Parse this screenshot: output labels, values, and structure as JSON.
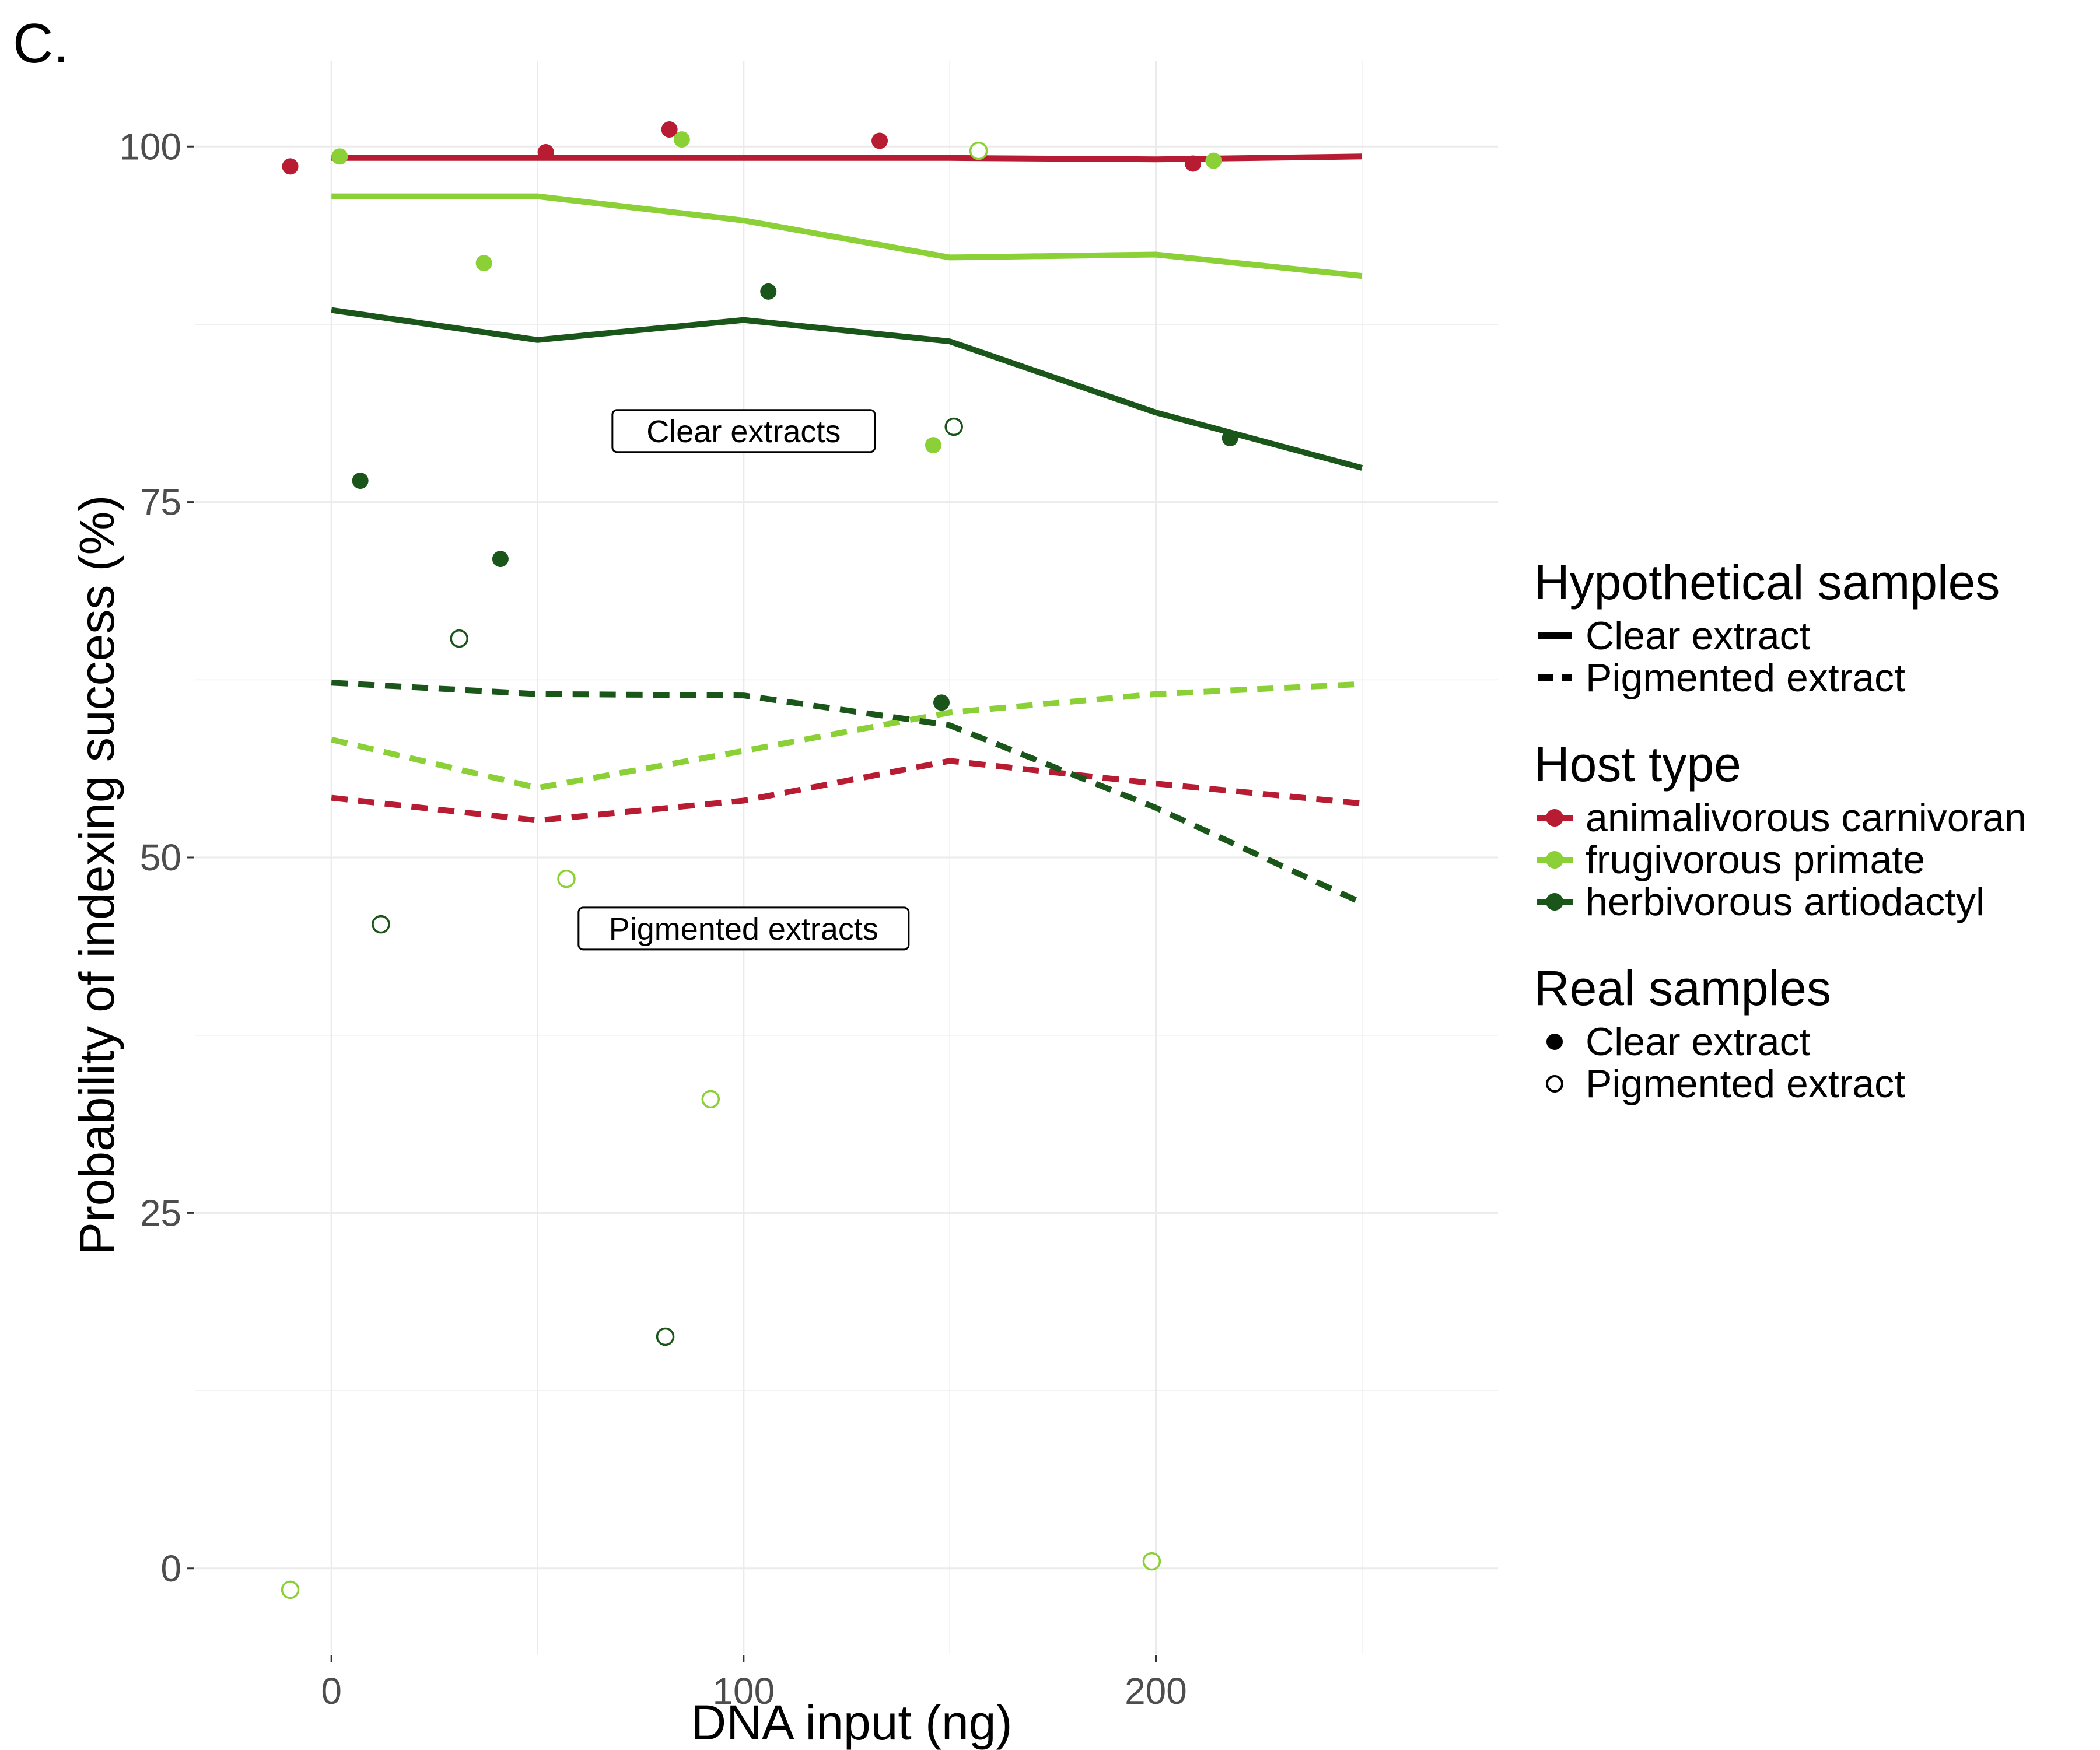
{
  "panel_label": "C.",
  "colors": {
    "animalivorous carnivoran": "#b81c32",
    "frugivorous primate": "#8cd037",
    "herbivorous artiodactyl": "#1a5519"
  },
  "legend": {
    "hypothetical": {
      "title": "Hypothetical samples",
      "items": [
        {
          "label": "Clear extract",
          "linetype": "solid"
        },
        {
          "label": "Pigmented extract",
          "linetype": "dashed"
        }
      ]
    },
    "host": {
      "title": "Host type",
      "items": [
        {
          "label": "animalivorous carnivoran",
          "color": "#b81c32"
        },
        {
          "label": "frugivorous primate",
          "color": "#8cd037"
        },
        {
          "label": "herbivorous artiodactyl",
          "color": "#1a5519"
        }
      ]
    },
    "real": {
      "title": "Real samples",
      "items": [
        {
          "label": "Clear extract",
          "marker": "filled"
        },
        {
          "label": "Pigmented extract",
          "marker": "open"
        }
      ]
    }
  },
  "chart_data": {
    "type": "line",
    "xlabel": "DNA input (ng)",
    "ylabel": "Probability of indexing success (%)",
    "xlim": [
      -33,
      283
    ],
    "ylim": [
      -6,
      106
    ],
    "xticks": [
      0,
      100,
      200
    ],
    "yticks": [
      0,
      25,
      50,
      75,
      100
    ],
    "grid": true,
    "legend_position": "right",
    "x": [
      0,
      50,
      100,
      150,
      200,
      250
    ],
    "series": [
      {
        "host": "animalivorous carnivoran",
        "extract": "Clear extract",
        "linetype": "solid",
        "values": [
          99.2,
          99.2,
          99.2,
          99.2,
          99.1,
          99.3
        ]
      },
      {
        "host": "frugivorous primate",
        "extract": "Clear extract",
        "linetype": "solid",
        "values": [
          96.5,
          96.5,
          94.8,
          92.2,
          92.4,
          90.9
        ]
      },
      {
        "host": "herbivorous artiodactyl",
        "extract": "Clear extract",
        "linetype": "solid",
        "values": [
          88.5,
          86.4,
          87.8,
          86.3,
          81.3,
          77.4
        ]
      },
      {
        "host": "animalivorous carnivoran",
        "extract": "Pigmented extract",
        "linetype": "dashed",
        "values": [
          54.2,
          52.6,
          54.0,
          56.8,
          55.2,
          53.8
        ]
      },
      {
        "host": "frugivorous primate",
        "extract": "Pigmented extract",
        "linetype": "dashed",
        "values": [
          58.3,
          54.9,
          57.5,
          60.2,
          61.5,
          62.2
        ]
      },
      {
        "host": "herbivorous artiodactyl",
        "extract": "Pigmented extract",
        "linetype": "dashed",
        "values": [
          62.3,
          61.5,
          61.4,
          59.3,
          53.5,
          46.8
        ]
      }
    ],
    "points": [
      {
        "x": -10,
        "y": 98.6,
        "host": "animalivorous carnivoran",
        "extract": "Clear extract"
      },
      {
        "x": 52,
        "y": 99.6,
        "host": "animalivorous carnivoran",
        "extract": "Clear extract"
      },
      {
        "x": 82,
        "y": 101.2,
        "host": "animalivorous carnivoran",
        "extract": "Clear extract"
      },
      {
        "x": 133,
        "y": 100.4,
        "host": "animalivorous carnivoran",
        "extract": "Clear extract"
      },
      {
        "x": 209,
        "y": 98.8,
        "host": "animalivorous carnivoran",
        "extract": "Clear extract"
      },
      {
        "x": 2,
        "y": 99.3,
        "host": "frugivorous primate",
        "extract": "Clear extract"
      },
      {
        "x": 85,
        "y": 100.5,
        "host": "frugivorous primate",
        "extract": "Clear extract"
      },
      {
        "x": 37,
        "y": 91.8,
        "host": "frugivorous primate",
        "extract": "Clear extract"
      },
      {
        "x": 146,
        "y": 79.0,
        "host": "frugivorous primate",
        "extract": "Clear extract"
      },
      {
        "x": 214,
        "y": 99.0,
        "host": "frugivorous primate",
        "extract": "Clear extract"
      },
      {
        "x": 157,
        "y": 99.7,
        "host": "frugivorous primate",
        "extract": "Pigmented extract"
      },
      {
        "x": 57,
        "y": 48.5,
        "host": "frugivorous primate",
        "extract": "Pigmented extract"
      },
      {
        "x": 92,
        "y": 33.0,
        "host": "frugivorous primate",
        "extract": "Pigmented extract"
      },
      {
        "x": -10,
        "y": -1.5,
        "host": "frugivorous primate",
        "extract": "Pigmented extract"
      },
      {
        "x": 199,
        "y": 0.5,
        "host": "frugivorous primate",
        "extract": "Pigmented extract"
      },
      {
        "x": 106,
        "y": 89.8,
        "host": "herbivorous artiodactyl",
        "extract": "Clear extract"
      },
      {
        "x": 7,
        "y": 76.5,
        "host": "herbivorous artiodactyl",
        "extract": "Clear extract"
      },
      {
        "x": 41,
        "y": 71.0,
        "host": "herbivorous artiodactyl",
        "extract": "Clear extract"
      },
      {
        "x": 148,
        "y": 60.9,
        "host": "herbivorous artiodactyl",
        "extract": "Clear extract"
      },
      {
        "x": 218,
        "y": 79.5,
        "host": "herbivorous artiodactyl",
        "extract": "Clear extract"
      },
      {
        "x": 151,
        "y": 80.3,
        "host": "herbivorous artiodactyl",
        "extract": "Pigmented extract"
      },
      {
        "x": 31,
        "y": 65.4,
        "host": "herbivorous artiodactyl",
        "extract": "Pigmented extract"
      },
      {
        "x": 12,
        "y": 45.3,
        "host": "herbivorous artiodactyl",
        "extract": "Pigmented extract"
      },
      {
        "x": 81,
        "y": 16.3,
        "host": "herbivorous artiodactyl",
        "extract": "Pigmented extract"
      }
    ],
    "annotations": [
      {
        "text": "Clear extracts",
        "x": 100,
        "y": 80
      },
      {
        "text": "Pigmented extracts",
        "x": 100,
        "y": 45
      }
    ]
  }
}
